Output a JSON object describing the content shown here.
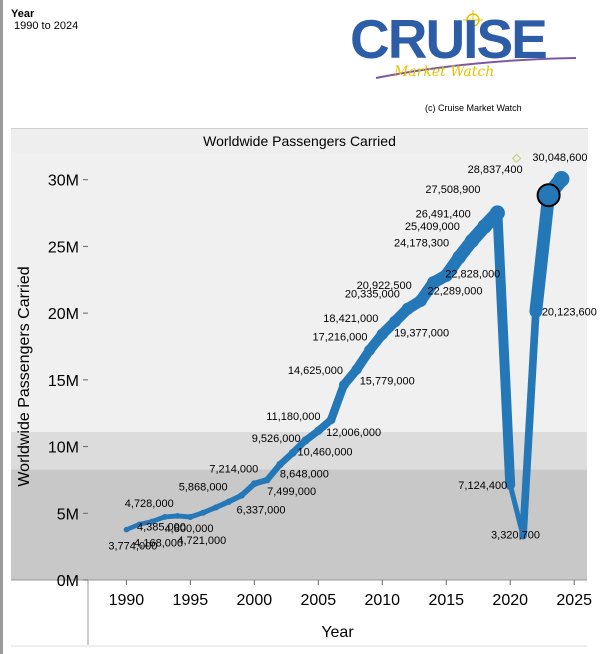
{
  "filter": {
    "label": "Year",
    "value": "1990 to 2024"
  },
  "logo": {
    "main": "CRUISE",
    "sub": "Market Watch"
  },
  "copyright": "(c) Cruise Market Watch",
  "chart_data": {
    "type": "line",
    "title": "Worldwide Passengers Carried",
    "xlabel": "Year",
    "ylabel": "Worldwide Passengers Carried",
    "xlim": [
      1987,
      2026
    ],
    "ylim": [
      0,
      32000000
    ],
    "x_ticks": [
      1990,
      1995,
      2000,
      2005,
      2010,
      2015,
      2020,
      2025
    ],
    "y_ticks": [
      {
        "value": 0,
        "label": "0M"
      },
      {
        "value": 5000000,
        "label": "5M"
      },
      {
        "value": 10000000,
        "label": "10M"
      },
      {
        "value": 15000000,
        "label": "15M"
      },
      {
        "value": 20000000,
        "label": "20M"
      },
      {
        "value": 25000000,
        "label": "25M"
      },
      {
        "value": 30000000,
        "label": "30M"
      }
    ],
    "bands": [
      {
        "from": 0,
        "to": 8300000,
        "color": "#c8c8c8"
      },
      {
        "from": 8300000,
        "to": 11100000,
        "color": "#dcdcdc"
      },
      {
        "from": 11100000,
        "to": 32000000,
        "color": "#f0f0f0"
      }
    ],
    "series": [
      {
        "color": "#2478b8",
        "points": [
          {
            "x": 1990,
            "y": 3774000,
            "label": "3,774,000"
          },
          {
            "x": 1991,
            "y": 4168000,
            "label": "4,168,000"
          },
          {
            "x": 1992,
            "y": 4385000,
            "label": "4,385,000"
          },
          {
            "x": 1993,
            "y": 4728000,
            "label": "4,728,000"
          },
          {
            "x": 1994,
            "y": 4800000,
            "label": "4,800,000"
          },
          {
            "x": 1995,
            "y": 4721000,
            "label": "4,721,000"
          },
          {
            "x": 1996,
            "y": 5043000,
            "label": ""
          },
          {
            "x": 1997,
            "y": 5440000,
            "label": ""
          },
          {
            "x": 1998,
            "y": 5868000,
            "label": "5,868,000"
          },
          {
            "x": 1999,
            "y": 6337000,
            "label": "6,337,000"
          },
          {
            "x": 2000,
            "y": 7214000,
            "label": "7,214,000"
          },
          {
            "x": 2001,
            "y": 7499000,
            "label": "7,499,000"
          },
          {
            "x": 2002,
            "y": 8648000,
            "label": "8,648,000"
          },
          {
            "x": 2003,
            "y": 9526000,
            "label": "9,526,000"
          },
          {
            "x": 2004,
            "y": 10460000,
            "label": "10,460,000"
          },
          {
            "x": 2005,
            "y": 11180000,
            "label": "11,180,000"
          },
          {
            "x": 2006,
            "y": 12006000,
            "label": "12,006,000"
          },
          {
            "x": 2007,
            "y": 14625000,
            "label": "14,625,000"
          },
          {
            "x": 2008,
            "y": 15779000,
            "label": "15,779,000"
          },
          {
            "x": 2009,
            "y": 17216000,
            "label": "17,216,000"
          },
          {
            "x": 2010,
            "y": 18421000,
            "label": "18,421,000"
          },
          {
            "x": 2011,
            "y": 19377000,
            "label": "19,377,000"
          },
          {
            "x": 2012,
            "y": 20335000,
            "label": "20,335,000"
          },
          {
            "x": 2013,
            "y": 20922500,
            "label": "20,922,500"
          },
          {
            "x": 2014,
            "y": 22289000,
            "label": "22,289,000"
          },
          {
            "x": 2015,
            "y": 22828000,
            "label": "22,828,000"
          },
          {
            "x": 2016,
            "y": 24178300,
            "label": "24,178,300"
          },
          {
            "x": 2017,
            "y": 25409000,
            "label": "25,409,000"
          },
          {
            "x": 2018,
            "y": 26491400,
            "label": "26,491,400"
          },
          {
            "x": 2019,
            "y": 27508900,
            "label": "27,508,900"
          },
          {
            "x": 2020,
            "y": 7124400,
            "label": "7,124,400"
          },
          {
            "x": 2021,
            "y": 3320700,
            "label": "3,320,700"
          },
          {
            "x": 2022,
            "y": 20123600,
            "label": "20,123,600"
          },
          {
            "x": 2023,
            "y": 28837400,
            "label": "28,837,400"
          },
          {
            "x": 2024,
            "y": 30048600,
            "label": "30,048,600"
          }
        ]
      }
    ],
    "highlight": {
      "x": 2023,
      "y": 28837400
    },
    "reference_marker": {
      "x": 2020.5,
      "y": 31600000,
      "color": "#c9d28a"
    }
  }
}
